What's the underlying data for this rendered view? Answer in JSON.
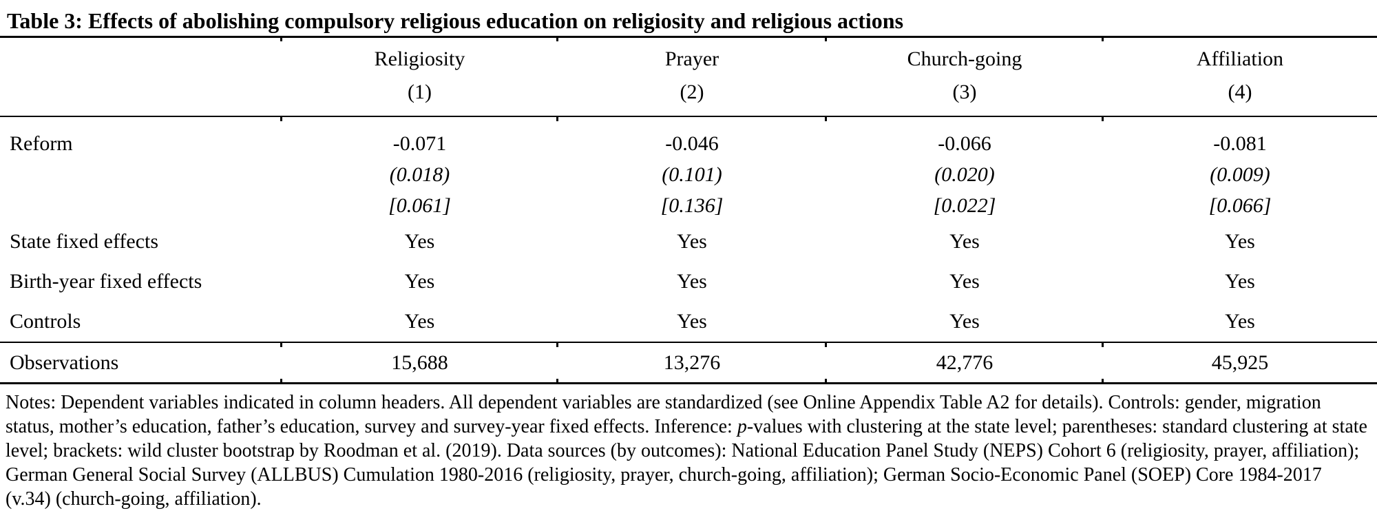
{
  "title": "Table 3: Effects of abolishing compulsory religious education on religiosity and religious actions",
  "table": {
    "columns": [
      {
        "label": "Religiosity",
        "number": "(1)"
      },
      {
        "label": "Prayer",
        "number": "(2)"
      },
      {
        "label": "Church-going",
        "number": "(3)"
      },
      {
        "label": "Affiliation",
        "number": "(4)"
      }
    ],
    "reform": {
      "label": "Reform",
      "coef": [
        "-0.071",
        "-0.046",
        "-0.066",
        "-0.081"
      ],
      "se": [
        "(0.018)",
        "(0.101)",
        "(0.020)",
        "(0.009)"
      ],
      "pval": [
        "[0.061]",
        "[0.136]",
        "[0.022]",
        "[0.066]"
      ]
    },
    "rows": [
      {
        "label": "State fixed effects",
        "values": [
          "Yes",
          "Yes",
          "Yes",
          "Yes"
        ]
      },
      {
        "label": "Birth-year fixed effects",
        "values": [
          "Yes",
          "Yes",
          "Yes",
          "Yes"
        ]
      },
      {
        "label": "Controls",
        "values": [
          "Yes",
          "Yes",
          "Yes",
          "Yes"
        ]
      }
    ],
    "observations": {
      "label": "Observations",
      "values": [
        "15,688",
        "13,276",
        "42,776",
        "45,925"
      ]
    }
  },
  "notes": {
    "part1": "Notes: Dependent variables indicated in column headers. All dependent variables are standardized (see Online Appendix Table A2 for details). Controls: gender, migration status, mother’s education, father’s education, survey and survey-year fixed effects. Inference: ",
    "p_italic": "p",
    "part2": "-values with clustering at the state level; parentheses: standard clustering at state level; brackets: wild cluster bootstrap by Roodman et al. (2019). Data sources (by outcomes): National Education Panel Study (NEPS) Cohort 6 (religiosity, prayer, affiliation); German General Social Survey (ALLBUS) Cumulation 1980-2016 (religiosity, prayer, church-going, affiliation); German Socio-Economic Panel (SOEP) Core 1984-2017 (v.34) (church-going, affiliation)."
  }
}
